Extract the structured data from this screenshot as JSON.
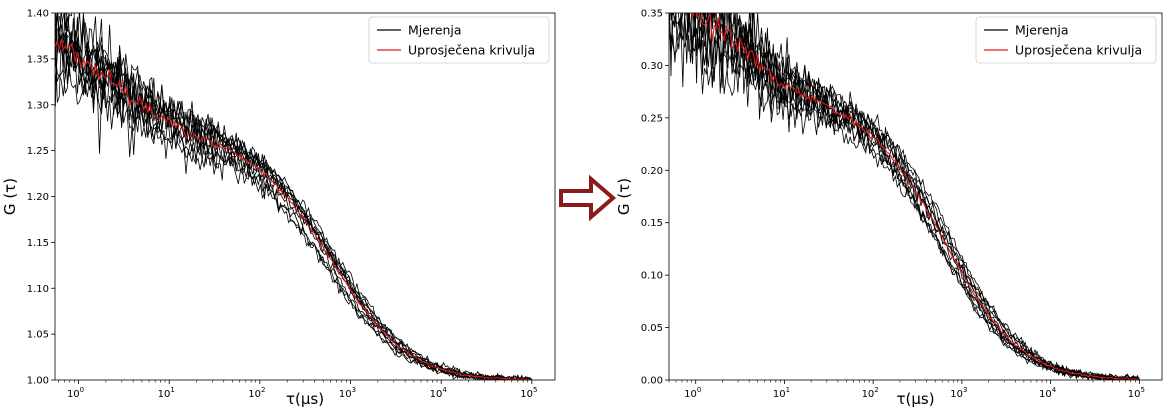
{
  "chart_data": [
    {
      "type": "line",
      "title": "",
      "xlabel": "τ(μs)",
      "ylabel": "G (τ)",
      "xscale": "log",
      "xlim": [
        0.55,
        180000
      ],
      "ylim": [
        1.0,
        1.4
      ],
      "x_ticks": [
        {
          "value": 1,
          "exp": "0"
        },
        {
          "value": 10,
          "exp": "1"
        },
        {
          "value": 100,
          "exp": "2"
        },
        {
          "value": 1000,
          "exp": "3"
        },
        {
          "value": 10000,
          "exp": "4"
        },
        {
          "value": 100000,
          "exp": "5"
        }
      ],
      "y_ticks": [
        "1.00",
        "1.05",
        "1.10",
        "1.15",
        "1.20",
        "1.25",
        "1.30",
        "1.35",
        "1.40"
      ],
      "legend": {
        "position": "top-right",
        "entries": [
          "Mjerenja",
          "Uprosječena krivulja"
        ]
      },
      "series": [
        {
          "name": "Mjerenja",
          "color": "#000000",
          "count": 12
        },
        {
          "name": "Uprosječena krivulja",
          "color": "#e31a1c"
        }
      ],
      "model": {
        "baseline": 1.0,
        "A1": 0.12,
        "tau1": 2.2,
        "A2": 0.265,
        "tau2": 650
      },
      "grid": false
    },
    {
      "type": "line",
      "title": "",
      "xlabel": "τ(μs)",
      "ylabel": "G (τ)",
      "xscale": "log",
      "xlim": [
        0.5,
        180000
      ],
      "ylim": [
        0.0,
        0.35
      ],
      "x_ticks": [
        {
          "value": 1,
          "exp": "0"
        },
        {
          "value": 10,
          "exp": "1"
        },
        {
          "value": 100,
          "exp": "2"
        },
        {
          "value": 1000,
          "exp": "3"
        },
        {
          "value": 10000,
          "exp": "4"
        },
        {
          "value": 100000,
          "exp": "5"
        }
      ],
      "y_ticks": [
        "0.00",
        "0.05",
        "0.10",
        "0.15",
        "0.20",
        "0.25",
        "0.30",
        "0.35"
      ],
      "legend": {
        "position": "top-right",
        "entries": [
          "Mjerenja",
          "Uprosječena krivulja"
        ]
      },
      "series": [
        {
          "name": "Mjerenja",
          "color": "#000000",
          "count": 12
        },
        {
          "name": "Uprosječena krivulja",
          "color": "#e31a1c"
        }
      ],
      "model": {
        "baseline": 0.0,
        "A1": 0.12,
        "tau1": 2.2,
        "A2": 0.265,
        "tau2": 650
      },
      "grid": false
    }
  ],
  "arrow": {
    "color": "#8b1a1a",
    "meaning": "transformation-arrow"
  }
}
